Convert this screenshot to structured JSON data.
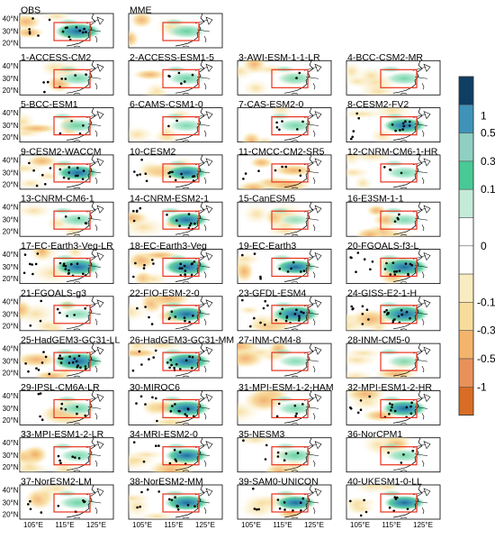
{
  "chart_data": {
    "type": "heatmap",
    "panels": [
      {
        "label": "OBS",
        "dots": 16,
        "intensity": 0.7
      },
      {
        "label": "MME",
        "dots": 0,
        "intensity": 0.4
      },
      {
        "label": "1-ACCESS-CM2",
        "dots": 8,
        "intensity": 0.3
      },
      {
        "label": "2-ACCESS-ESM1-5",
        "dots": 6,
        "intensity": 0.35
      },
      {
        "label": "3-AWI-ESM-1-1-LR",
        "dots": 2,
        "intensity": 0.3
      },
      {
        "label": "4-BCC-CSM2-MR",
        "dots": 0,
        "intensity": 0.3
      },
      {
        "label": "5-BCC-ESM1",
        "dots": 4,
        "intensity": 0.35
      },
      {
        "label": "6-CAMS-CSM1-0",
        "dots": 2,
        "intensity": 0.25
      },
      {
        "label": "7-CAS-ESM2-0",
        "dots": 6,
        "intensity": 0.3
      },
      {
        "label": "8-CESM2-FV2",
        "dots": 14,
        "intensity": 0.55
      },
      {
        "label": "9-CESM2-WACCM",
        "dots": 16,
        "intensity": 0.5
      },
      {
        "label": "10-CESM2",
        "dots": 16,
        "intensity": 0.5
      },
      {
        "label": "11-CMCC-CM2-SR5",
        "dots": 8,
        "intensity": -0.3
      },
      {
        "label": "12-CNRM-CM6-1-HR",
        "dots": 4,
        "intensity": 0.3
      },
      {
        "label": "13-CNRM-CM6-1",
        "dots": 4,
        "intensity": 0.3
      },
      {
        "label": "14-CNRM-ESM2-1",
        "dots": 14,
        "intensity": 0.55
      },
      {
        "label": "15-CanESM5",
        "dots": 0,
        "intensity": 0.1
      },
      {
        "label": "16-E3SM-1-1",
        "dots": 4,
        "intensity": 0.25
      },
      {
        "label": "17-EC-Earth3-Veg-LR",
        "dots": 20,
        "intensity": 0.7
      },
      {
        "label": "18-EC-Earth3-Veg",
        "dots": 18,
        "intensity": 0.7
      },
      {
        "label": "19-EC-Earth3",
        "dots": 10,
        "intensity": 0.45
      },
      {
        "label": "20-FGOALS-f3-L",
        "dots": 20,
        "intensity": 0.8
      },
      {
        "label": "21-FGOALS-g3",
        "dots": 8,
        "intensity": 0.2
      },
      {
        "label": "22-FIO-ESM-2-0",
        "dots": 12,
        "intensity": 0.5
      },
      {
        "label": "23-GFDL-ESM4",
        "dots": 22,
        "intensity": 0.75
      },
      {
        "label": "24-GISS-E2-1-H",
        "dots": 22,
        "intensity": 0.8
      },
      {
        "label": "25-HadGEM3-GC31-LL",
        "dots": 24,
        "intensity": 0.85
      },
      {
        "label": "26-HadGEM3-GC31-MM",
        "dots": 18,
        "intensity": 0.75
      },
      {
        "label": "27-INM-CM4-8",
        "dots": 0,
        "intensity": 0.2
      },
      {
        "label": "28-INM-CM5-0",
        "dots": 0,
        "intensity": 0.2
      },
      {
        "label": "29-IPSL-CM6A-LR",
        "dots": 10,
        "intensity": 0.35
      },
      {
        "label": "30-MIROC6",
        "dots": 16,
        "intensity": 0.65
      },
      {
        "label": "31-MPI-ESM-1-2-HAM",
        "dots": 6,
        "intensity": 0.3
      },
      {
        "label": "32-MPI-ESM1-2-HR",
        "dots": 18,
        "intensity": 0.65
      },
      {
        "label": "33-MPI-ESM1-2-LR",
        "dots": 6,
        "intensity": 0.3
      },
      {
        "label": "34-MRI-ESM2-0",
        "dots": 10,
        "intensity": 0.55
      },
      {
        "label": "35-NESM3",
        "dots": 8,
        "intensity": 0.4
      },
      {
        "label": "36-NorCPM1",
        "dots": 4,
        "intensity": 0.3
      },
      {
        "label": "37-NorESM2-LM",
        "dots": 10,
        "intensity": 0.35
      },
      {
        "label": "38-NorESM2-MM",
        "dots": 14,
        "intensity": 0.6
      },
      {
        "label": "39-SAM0-UNICON",
        "dots": 12,
        "intensity": 0.45
      },
      {
        "label": "40-UKESM1-0-LL",
        "dots": 10,
        "intensity": 0.45
      }
    ],
    "y_ticks": [
      "40°N",
      "30°N",
      "20°N"
    ],
    "x_ticks": [
      "105°E",
      "115°E",
      "125°E"
    ],
    "colorbar": {
      "labels": [
        "1",
        "0.5",
        "0.3",
        "0.1",
        "0",
        "-0.1",
        "-0.3",
        "-0.5",
        "-1"
      ],
      "colors": [
        "#0f3e63",
        "#3f93b8",
        "#8fd0c3",
        "#49c996",
        "#c3ebd8",
        "#ffffff",
        "#ffffff",
        "#f8ecc0",
        "#f8dc9c",
        "#f4b46c",
        "#e8925a",
        "#d96d25"
      ]
    },
    "colors": {
      "box": "#e8321e",
      "coast": "#000000",
      "dots": "#000000"
    }
  }
}
